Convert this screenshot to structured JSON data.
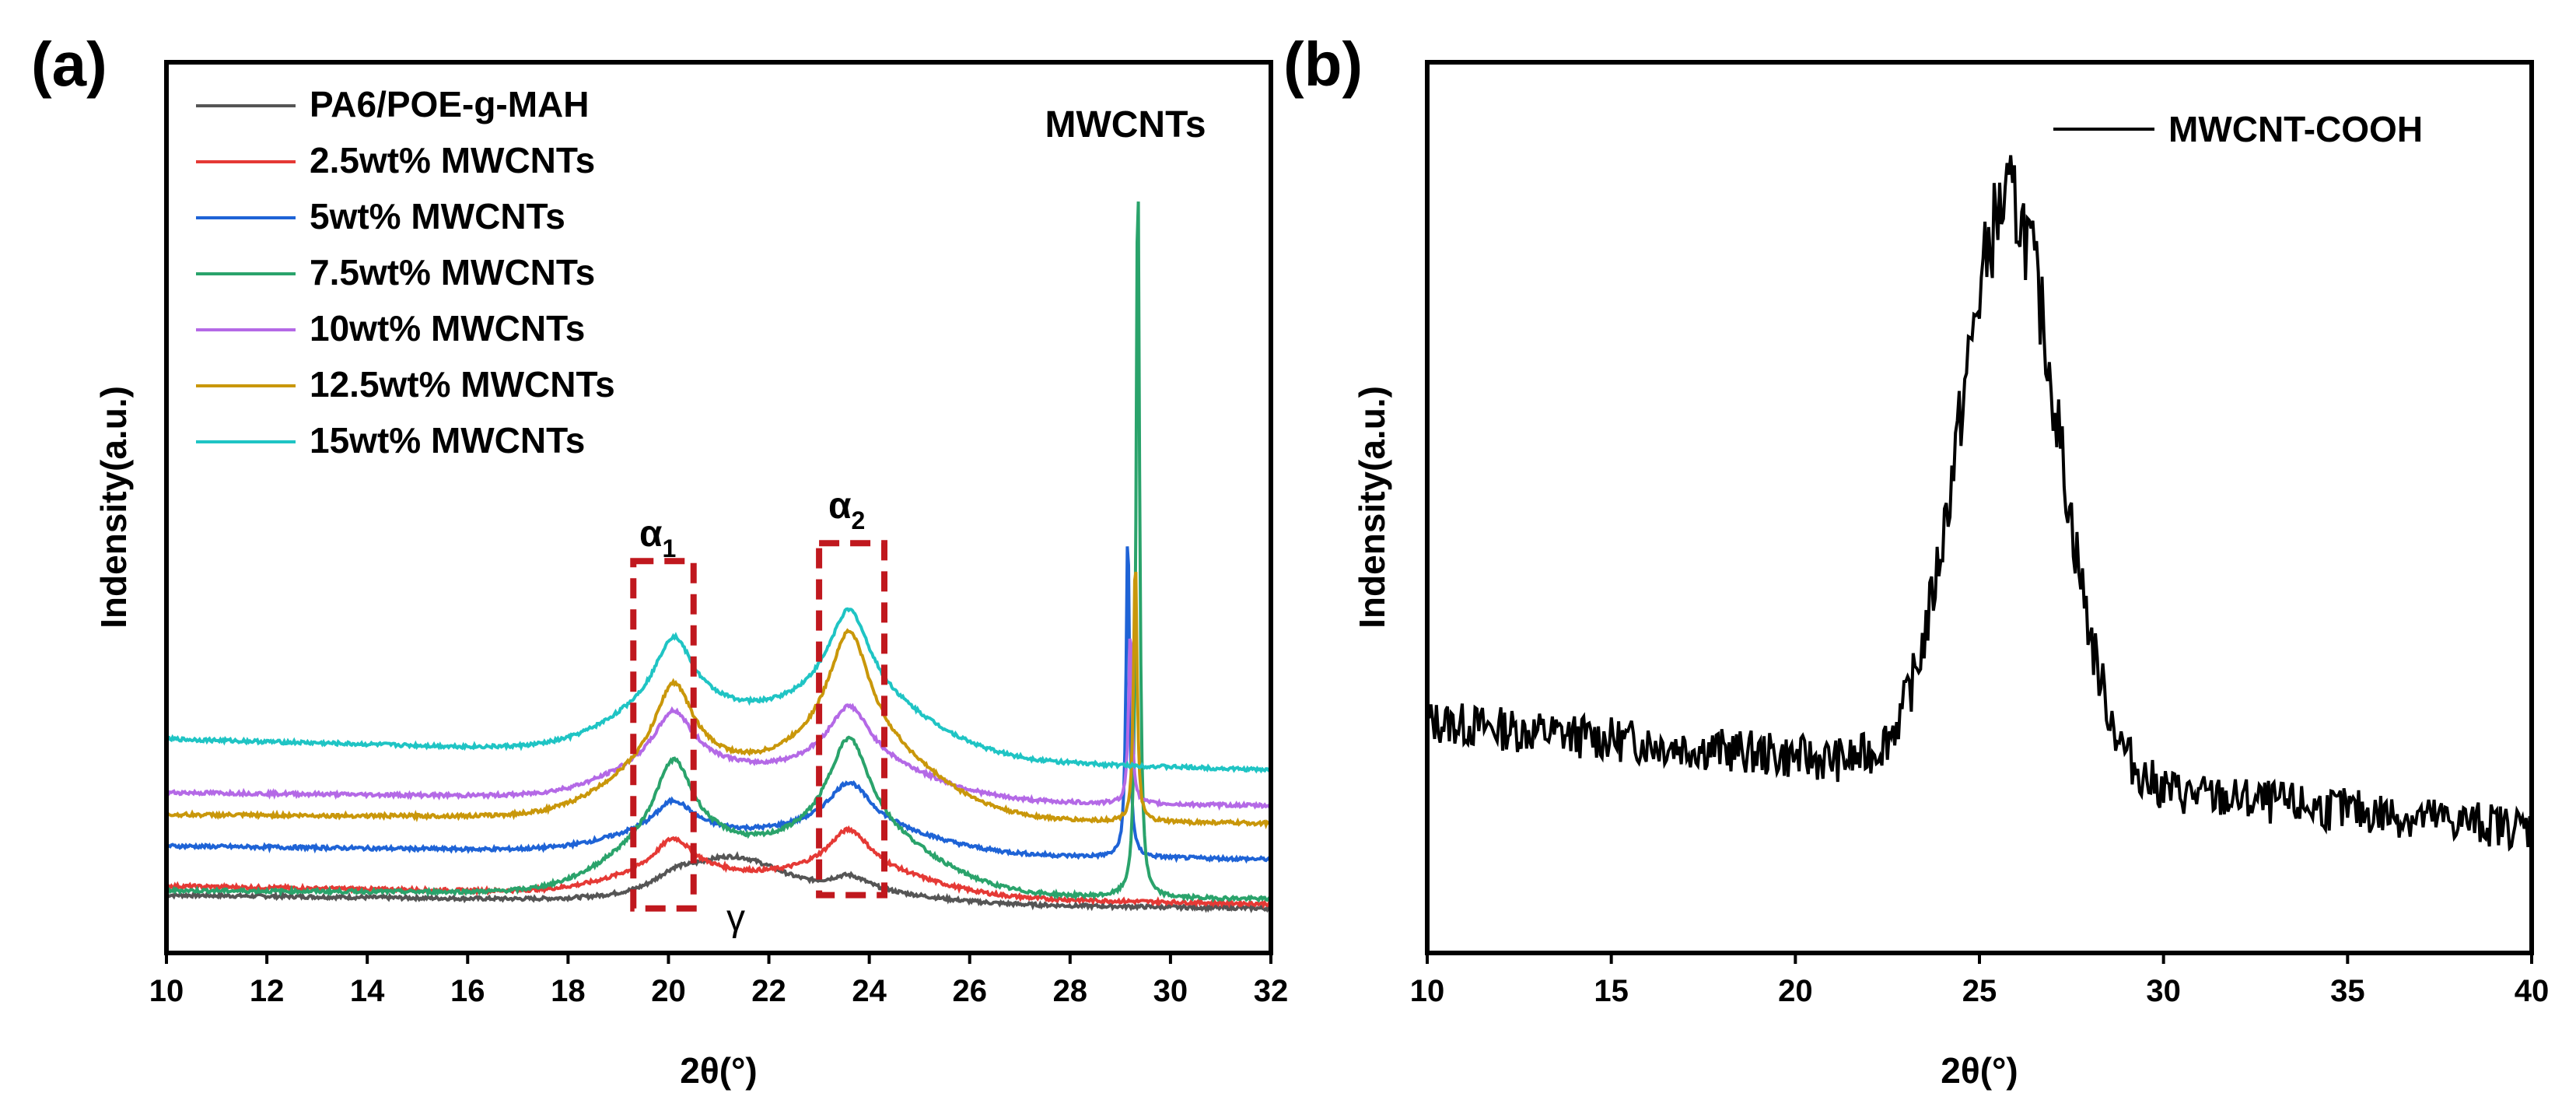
{
  "chart_data": [
    {
      "panel_label": "(a)",
      "type": "line",
      "title": "",
      "xlabel": "2θ(°)",
      "ylabel": "Indensity(a.u.)",
      "xlim": [
        10,
        32
      ],
      "ylim": [
        0,
        1
      ],
      "xticks": [
        "10",
        "12",
        "14",
        "16",
        "18",
        "20",
        "22",
        "24",
        "26",
        "28",
        "30",
        "32"
      ],
      "series": [
        {
          "name": "PA6/POE-g-MAH",
          "color": "#555555",
          "offset": 0.065,
          "alpha1": 0.02,
          "alpha2": 0.03,
          "gamma": 0.04,
          "cnt": 0.0,
          "slope": -0.015
        },
        {
          "name": "2.5wt% MWCNTs",
          "color": "#e53935",
          "offset": 0.075,
          "alpha1": 0.06,
          "alpha2": 0.075,
          "gamma": 0.0,
          "cnt": 0.0,
          "slope": -0.02
        },
        {
          "name": "5wt% MWCNTs",
          "color": "#1e63d6",
          "offset": 0.12,
          "alpha1": 0.055,
          "alpha2": 0.08,
          "gamma": 0.0,
          "cnt": 0.37,
          "cnt_pos": 29.15,
          "slope": -0.015
        },
        {
          "name": "7.5wt% MWCNTs",
          "color": "#2aa36b",
          "offset": 0.07,
          "alpha1": 0.145,
          "alpha2": 0.175,
          "gamma": 0.0,
          "cnt": 0.83,
          "cnt_pos": 29.35,
          "slope": -0.01
        },
        {
          "name": "10wt% MWCNTs",
          "color": "#b469e6",
          "offset": 0.18,
          "alpha1": 0.095,
          "alpha2": 0.105,
          "gamma": 0.0,
          "cnt": 0.2,
          "cnt_pos": 29.2,
          "slope": -0.015
        },
        {
          "name": "12.5wt% MWCNTs",
          "color": "#c9970a",
          "offset": 0.155,
          "alpha1": 0.145,
          "alpha2": 0.21,
          "gamma": 0.0,
          "cnt": 0.3,
          "cnt_pos": 29.3,
          "slope": -0.01
        },
        {
          "name": "15wt% MWCNTs",
          "color": "#1fc4c4",
          "offset": 0.24,
          "alpha1": 0.125,
          "alpha2": 0.165,
          "gamma": 0.0,
          "cnt": 0.0,
          "slope": -0.035
        }
      ],
      "annotations": {
        "alpha1_symbol": "α",
        "alpha1_sub": "1",
        "alpha2_symbol": "α",
        "alpha2_sub": "2",
        "gamma": "γ",
        "cnt_peak": "MWCNTs"
      },
      "boxes": [
        {
          "name": "alpha1",
          "x_range": [
            19.3,
            20.5
          ],
          "y_range": [
            0.05,
            0.44
          ]
        },
        {
          "name": "alpha2",
          "x_range": [
            23.0,
            24.3
          ],
          "y_range": [
            0.065,
            0.46
          ]
        }
      ]
    },
    {
      "panel_label": "(b)",
      "type": "line",
      "title": "",
      "xlabel": "2θ(°)",
      "ylabel": "Indensity(a.u.)",
      "xlim": [
        10,
        40
      ],
      "ylim": [
        0,
        1
      ],
      "xticks": [
        "10",
        "15",
        "20",
        "25",
        "30",
        "35",
        "40"
      ],
      "series": [
        {
          "name": "MWCNT-COOH",
          "color": "#000000",
          "peak_pos": 25.8,
          "peak_height": 0.9,
          "baseline_start": 0.26,
          "baseline_end": 0.14
        }
      ]
    }
  ]
}
